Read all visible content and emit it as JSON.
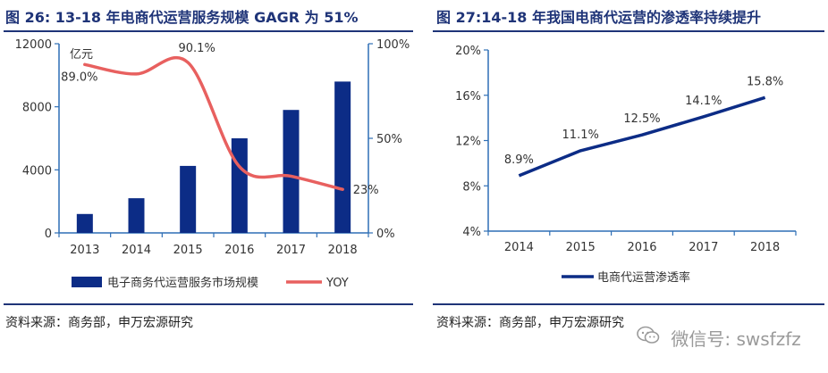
{
  "left": {
    "title": "图 26: 13-18 年电商代运营服务规模 GAGR 为 51%",
    "source": "资料来源：商务部，申万宏源研究"
  },
  "right": {
    "title": "图 27:14-18 年我国电商代运营的渗透率持续提升",
    "source": "资料来源：商务部，申万宏源研究"
  },
  "watermark": {
    "text": "微信号: swsfzfz",
    "icon": "wechat-icon"
  },
  "colors": {
    "title": "#1f3478",
    "bar": "#0c2c86",
    "yoy": "#e8605f",
    "penetration": "#0c2c86",
    "axis": "#2e6fb5"
  },
  "chart_data": [
    {
      "type": "bar",
      "categories": [
        "2013",
        "2014",
        "2015",
        "2016",
        "2017",
        "2018"
      ],
      "series": [
        {
          "name": "电子商务代运营服务市场规模",
          "axis": "left",
          "kind": "bar",
          "values": [
            1200,
            2200,
            4250,
            6000,
            7800,
            9600
          ]
        },
        {
          "name": "YOY",
          "axis": "right",
          "kind": "line",
          "values": [
            89.0,
            84.0,
            90.1,
            35.0,
            30.0,
            23.0
          ]
        }
      ],
      "data_labels": [
        "89.0%",
        "",
        "90.1%",
        "",
        "",
        "23%"
      ],
      "unit": "亿元",
      "ylim_left": [
        0,
        12000
      ],
      "yticks_left": [
        "0",
        "4000",
        "8000",
        "12000"
      ],
      "ylim_right": [
        0,
        100
      ],
      "yticks_right": [
        "0%",
        "50%",
        "100%"
      ],
      "legend": "bottom",
      "grid": false
    },
    {
      "type": "line",
      "categories": [
        "2014",
        "2015",
        "2016",
        "2017",
        "2018"
      ],
      "series": [
        {
          "name": "电商代运营渗透率",
          "values": [
            8.9,
            11.1,
            12.5,
            14.1,
            15.8
          ]
        }
      ],
      "data_labels": [
        "8.9%",
        "11.1%",
        "12.5%",
        "14.1%",
        "15.8%"
      ],
      "ylim": [
        4,
        20
      ],
      "yticks": [
        "4%",
        "8%",
        "12%",
        "16%",
        "20%"
      ],
      "legend": "bottom",
      "grid": false
    }
  ]
}
